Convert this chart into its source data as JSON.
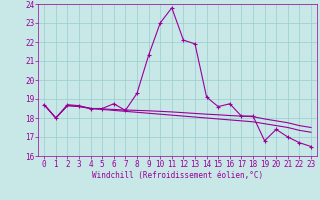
{
  "xlabel": "Windchill (Refroidissement éolien,°C)",
  "bg_color": "#c8e8e8",
  "grid_color": "#99cccc",
  "line_color": "#990099",
  "spine_color": "#990099",
  "xlim": [
    -0.5,
    23.5
  ],
  "ylim": [
    16,
    24
  ],
  "yticks": [
    16,
    17,
    18,
    19,
    20,
    21,
    22,
    23,
    24
  ],
  "xticks": [
    0,
    1,
    2,
    3,
    4,
    5,
    6,
    7,
    8,
    9,
    10,
    11,
    12,
    13,
    14,
    15,
    16,
    17,
    18,
    19,
    20,
    21,
    22,
    23
  ],
  "series1_x": [
    0,
    1,
    2,
    3,
    4,
    5,
    6,
    7,
    8,
    9,
    10,
    11,
    12,
    13,
    14,
    15,
    16,
    17,
    18,
    19,
    20,
    21,
    22,
    23
  ],
  "series1_y": [
    18.7,
    18.0,
    18.7,
    18.65,
    18.5,
    18.5,
    18.75,
    18.4,
    19.3,
    21.3,
    23.0,
    23.8,
    22.1,
    21.9,
    19.1,
    18.6,
    18.75,
    18.1,
    18.1,
    16.8,
    17.4,
    17.0,
    16.7,
    16.5
  ],
  "series2_x": [
    0,
    1,
    2,
    3,
    4,
    5,
    6,
    7,
    8,
    9,
    10,
    11,
    12,
    13,
    14,
    15,
    16,
    17,
    18,
    19,
    20,
    21,
    22,
    23
  ],
  "series2_y": [
    18.7,
    18.0,
    18.65,
    18.6,
    18.5,
    18.45,
    18.4,
    18.35,
    18.3,
    18.25,
    18.2,
    18.15,
    18.1,
    18.05,
    18.0,
    17.95,
    17.9,
    17.85,
    17.8,
    17.7,
    17.6,
    17.5,
    17.35,
    17.25
  ],
  "series3_x": [
    0,
    1,
    2,
    3,
    4,
    5,
    6,
    7,
    8,
    9,
    10,
    11,
    12,
    13,
    14,
    15,
    16,
    17,
    18,
    19,
    20,
    21,
    22,
    23
  ],
  "series3_y": [
    18.7,
    18.0,
    18.65,
    18.62,
    18.5,
    18.48,
    18.45,
    18.42,
    18.4,
    18.38,
    18.35,
    18.32,
    18.28,
    18.24,
    18.2,
    18.17,
    18.13,
    18.1,
    18.07,
    17.95,
    17.85,
    17.75,
    17.6,
    17.5
  ]
}
